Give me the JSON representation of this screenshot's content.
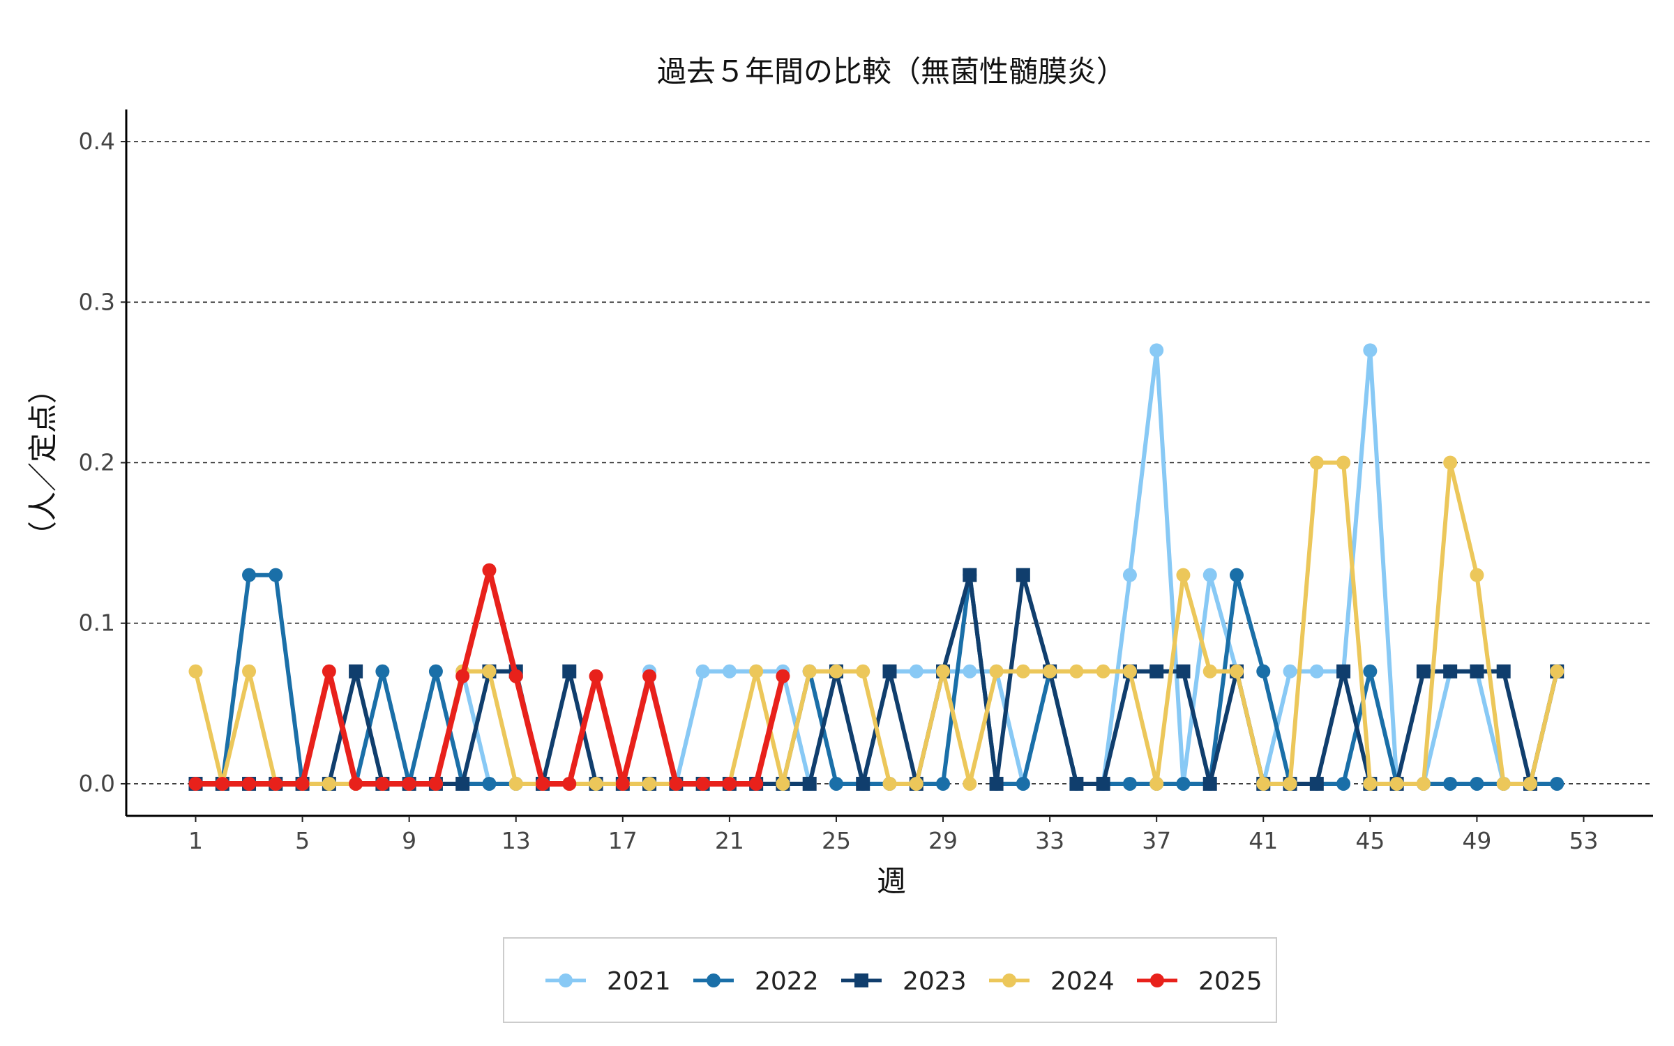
{
  "chart_data": {
    "type": "line",
    "title": "過去５年間の比較（無菌性髄膜炎）",
    "xlabel": "週",
    "ylabel": "（人／定点）",
    "xlim": [
      -1.6,
      55.6
    ],
    "ylim": [
      -0.02,
      0.42
    ],
    "x_ticks": [
      1,
      5,
      9,
      13,
      17,
      21,
      25,
      29,
      33,
      37,
      41,
      45,
      49,
      53
    ],
    "y_ticks": [
      0.0,
      0.1,
      0.2,
      0.3,
      0.4
    ],
    "y_tick_labels": [
      "0.0",
      "0.1",
      "0.2",
      "0.3",
      "0.4"
    ],
    "grid": "horizontal dashed",
    "legend_position": "bottom",
    "series": [
      {
        "name": "2021",
        "color": "#88c9f5",
        "marker": "circle",
        "x": [
          1,
          2,
          3,
          4,
          5,
          6,
          7,
          8,
          9,
          10,
          11,
          12,
          13,
          14,
          15,
          16,
          17,
          18,
          19,
          20,
          21,
          22,
          23,
          24,
          25,
          26,
          27,
          28,
          29,
          30,
          31,
          32,
          33,
          34,
          35,
          36,
          37,
          38,
          39,
          40,
          41,
          42,
          43,
          44,
          45,
          46,
          47,
          48,
          49,
          50,
          51,
          52
        ],
        "values": [
          0,
          0,
          0,
          0,
          0,
          0,
          0,
          0,
          0,
          0,
          0.07,
          0,
          0,
          0,
          0,
          0,
          0,
          0.07,
          0,
          0.07,
          0.07,
          0.07,
          0.07,
          0,
          0.07,
          0,
          0.07,
          0.07,
          0.07,
          0.07,
          0.07,
          0,
          0.07,
          0,
          0,
          0.13,
          0.27,
          0,
          0.13,
          0.07,
          0,
          0.07,
          0.07,
          0.07,
          0.27,
          0,
          0,
          0.07,
          0.07,
          0,
          0,
          0.07
        ]
      },
      {
        "name": "2022",
        "color": "#1a6fa8",
        "marker": "circle",
        "x": [
          1,
          2,
          3,
          4,
          5,
          6,
          7,
          8,
          9,
          10,
          11,
          12,
          13,
          14,
          15,
          16,
          17,
          18,
          19,
          20,
          21,
          22,
          23,
          24,
          25,
          26,
          27,
          28,
          29,
          30,
          31,
          32,
          33,
          34,
          35,
          36,
          37,
          38,
          39,
          40,
          41,
          42,
          43,
          44,
          45,
          46,
          47,
          48,
          49,
          50,
          51,
          52
        ],
        "values": [
          0,
          0,
          0.13,
          0.13,
          0,
          0,
          0,
          0.07,
          0,
          0.07,
          0,
          0,
          0,
          0,
          0,
          0,
          0,
          0,
          0,
          0,
          0,
          0,
          0,
          0.07,
          0,
          0,
          0,
          0,
          0,
          0.13,
          0,
          0,
          0.07,
          0,
          0,
          0,
          0,
          0,
          0,
          0.13,
          0.07,
          0,
          0,
          0,
          0.07,
          0,
          0,
          0,
          0,
          0,
          0,
          0
        ]
      },
      {
        "name": "2023",
        "color": "#103e6d",
        "marker": "square",
        "x": [
          1,
          2,
          3,
          4,
          5,
          6,
          7,
          8,
          9,
          10,
          11,
          12,
          13,
          14,
          15,
          16,
          17,
          18,
          19,
          20,
          21,
          22,
          23,
          24,
          25,
          26,
          27,
          28,
          29,
          30,
          31,
          32,
          33,
          34,
          35,
          36,
          37,
          38,
          39,
          40,
          41,
          42,
          43,
          44,
          45,
          46,
          47,
          48,
          49,
          50,
          51,
          52
        ],
        "values": [
          0,
          0,
          0,
          0,
          0,
          0,
          0.07,
          0,
          0,
          0,
          0,
          0.07,
          0.07,
          0,
          0.07,
          0,
          0,
          0,
          0,
          0,
          0,
          0,
          0,
          0,
          0.07,
          0,
          0.07,
          0,
          0.07,
          0.13,
          0,
          0.13,
          0.07,
          0,
          0,
          0.07,
          0.07,
          0.07,
          0,
          0.07,
          0,
          0,
          0,
          0.07,
          0,
          0,
          0.07,
          0.07,
          0.07,
          0.07,
          0,
          0.07
        ]
      },
      {
        "name": "2024",
        "color": "#ecc75a",
        "marker": "circle",
        "x": [
          1,
          2,
          3,
          4,
          5,
          6,
          7,
          8,
          9,
          10,
          11,
          12,
          13,
          14,
          15,
          16,
          17,
          18,
          19,
          20,
          21,
          22,
          23,
          24,
          25,
          26,
          27,
          28,
          29,
          30,
          31,
          32,
          33,
          34,
          35,
          36,
          37,
          38,
          39,
          40,
          41,
          42,
          43,
          44,
          45,
          46,
          47,
          48,
          49,
          50,
          51,
          52
        ],
        "values": [
          0.07,
          0,
          0.07,
          0,
          0,
          0,
          0,
          0,
          0,
          0,
          0.07,
          0.07,
          0,
          0,
          0,
          0,
          0,
          0,
          0,
          0,
          0,
          0.07,
          0,
          0.07,
          0.07,
          0.07,
          0,
          0,
          0.07,
          0,
          0.07,
          0.07,
          0.07,
          0.07,
          0.07,
          0.07,
          0,
          0.13,
          0.07,
          0.07,
          0,
          0,
          0.2,
          0.2,
          0,
          0,
          0,
          0.2,
          0.13,
          0,
          0,
          0.07
        ]
      },
      {
        "name": "2025",
        "color": "#e8211b",
        "marker": "circle",
        "x": [
          1,
          2,
          3,
          4,
          5,
          6,
          7,
          8,
          9,
          10,
          11,
          12,
          13,
          14,
          15,
          16,
          17,
          18,
          19,
          20,
          21,
          22,
          23
        ],
        "values": [
          0,
          0,
          0,
          0,
          0,
          0.07,
          0,
          0,
          0,
          0,
          0.067,
          0.133,
          0.067,
          0,
          0,
          0.067,
          0,
          0.067,
          0,
          0,
          0,
          0,
          0.067
        ]
      }
    ]
  }
}
